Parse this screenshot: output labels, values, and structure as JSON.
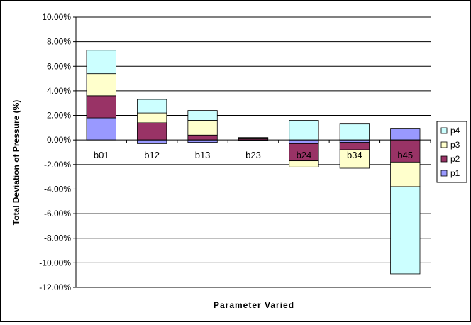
{
  "chart_data": {
    "type": "bar",
    "stacked": true,
    "categories": [
      "b01",
      "b12",
      "b13",
      "b23",
      "b24",
      "b34",
      "b45"
    ],
    "series": [
      {
        "name": "p1",
        "color": "#9999FF",
        "values": [
          1.8,
          -0.3,
          -0.2,
          -0.05,
          -0.3,
          -0.2,
          0.9
        ]
      },
      {
        "name": "p2",
        "color": "#993366",
        "values": [
          1.8,
          1.4,
          0.4,
          0.1,
          -1.4,
          -0.6,
          -1.8
        ]
      },
      {
        "name": "p3",
        "color": "#FFFFCC",
        "values": [
          1.8,
          0.8,
          1.2,
          0.05,
          -0.5,
          -1.5,
          -2.0
        ]
      },
      {
        "name": "p4",
        "color": "#CCFFFF",
        "values": [
          1.9,
          1.1,
          0.8,
          0.05,
          1.6,
          1.3,
          -7.1
        ]
      }
    ],
    "xlabel": "Parameter Varied",
    "ylabel": "Total Deviation of Pressure (%)",
    "ylim": [
      -12,
      10
    ],
    "yticks": [
      10,
      8,
      6,
      4,
      2,
      0,
      -2,
      -4,
      -6,
      -8,
      -10,
      -12
    ],
    "ytick_labels": [
      "10.00%",
      "8.00%",
      "6.00%",
      "4.00%",
      "2.00%",
      "0.00%",
      "-2.00%",
      "-4.00%",
      "-6.00%",
      "-8.00%",
      "-10.00%",
      "-12.00%"
    ],
    "grid": true,
    "legend": {
      "position": "right",
      "order": [
        "p4",
        "p3",
        "p2",
        "p1"
      ]
    }
  }
}
